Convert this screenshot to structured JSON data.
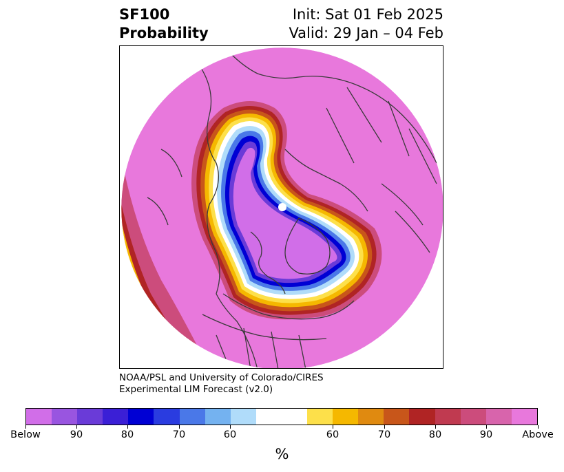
{
  "header": {
    "left_line1": "SF100",
    "left_line2": "Probability",
    "right_line1": "Init: Sat 01 Feb 2025",
    "right_line2": "Valid: 29 Jan – 04 Feb"
  },
  "credit": {
    "line1": "NOAA/PSL and University of Colorado/CIRES",
    "line2": "Experimental LIM Forecast (v2.0)"
  },
  "colorbar": {
    "colors": [
      "#d16ee8",
      "#9955e0",
      "#6a3bd8",
      "#3b1fd6",
      "#0000d4",
      "#2a3ce0",
      "#4a78e8",
      "#74b2f0",
      "#b0dcfa",
      "#ffffff",
      "#ffffff",
      "#fde04a",
      "#f5b800",
      "#e08a10",
      "#c8561a",
      "#b02424",
      "#c03a50",
      "#cc4c7c",
      "#d864ac",
      "#e878dc"
    ],
    "tick_labels": [
      "Below",
      "90",
      "80",
      "70",
      "60",
      "60",
      "70",
      "80",
      "90",
      "Above"
    ],
    "units": "%"
  },
  "map": {
    "projection": "north-polar-stereographic",
    "pattern_colors": {
      "above_high": "#e878dc",
      "above_mid": "#cc4c7c",
      "above_low": "#b02424",
      "warm1": "#c8561a",
      "warm2": "#f5b800",
      "warm3": "#fde04a",
      "neutral": "#ffffff",
      "cool1": "#b0dcfa",
      "cool2": "#4a78e8",
      "cool3": "#0000d4",
      "below_mid": "#6a3bd8",
      "below_high": "#d16ee8",
      "coastline": "#3a3a3a"
    }
  }
}
